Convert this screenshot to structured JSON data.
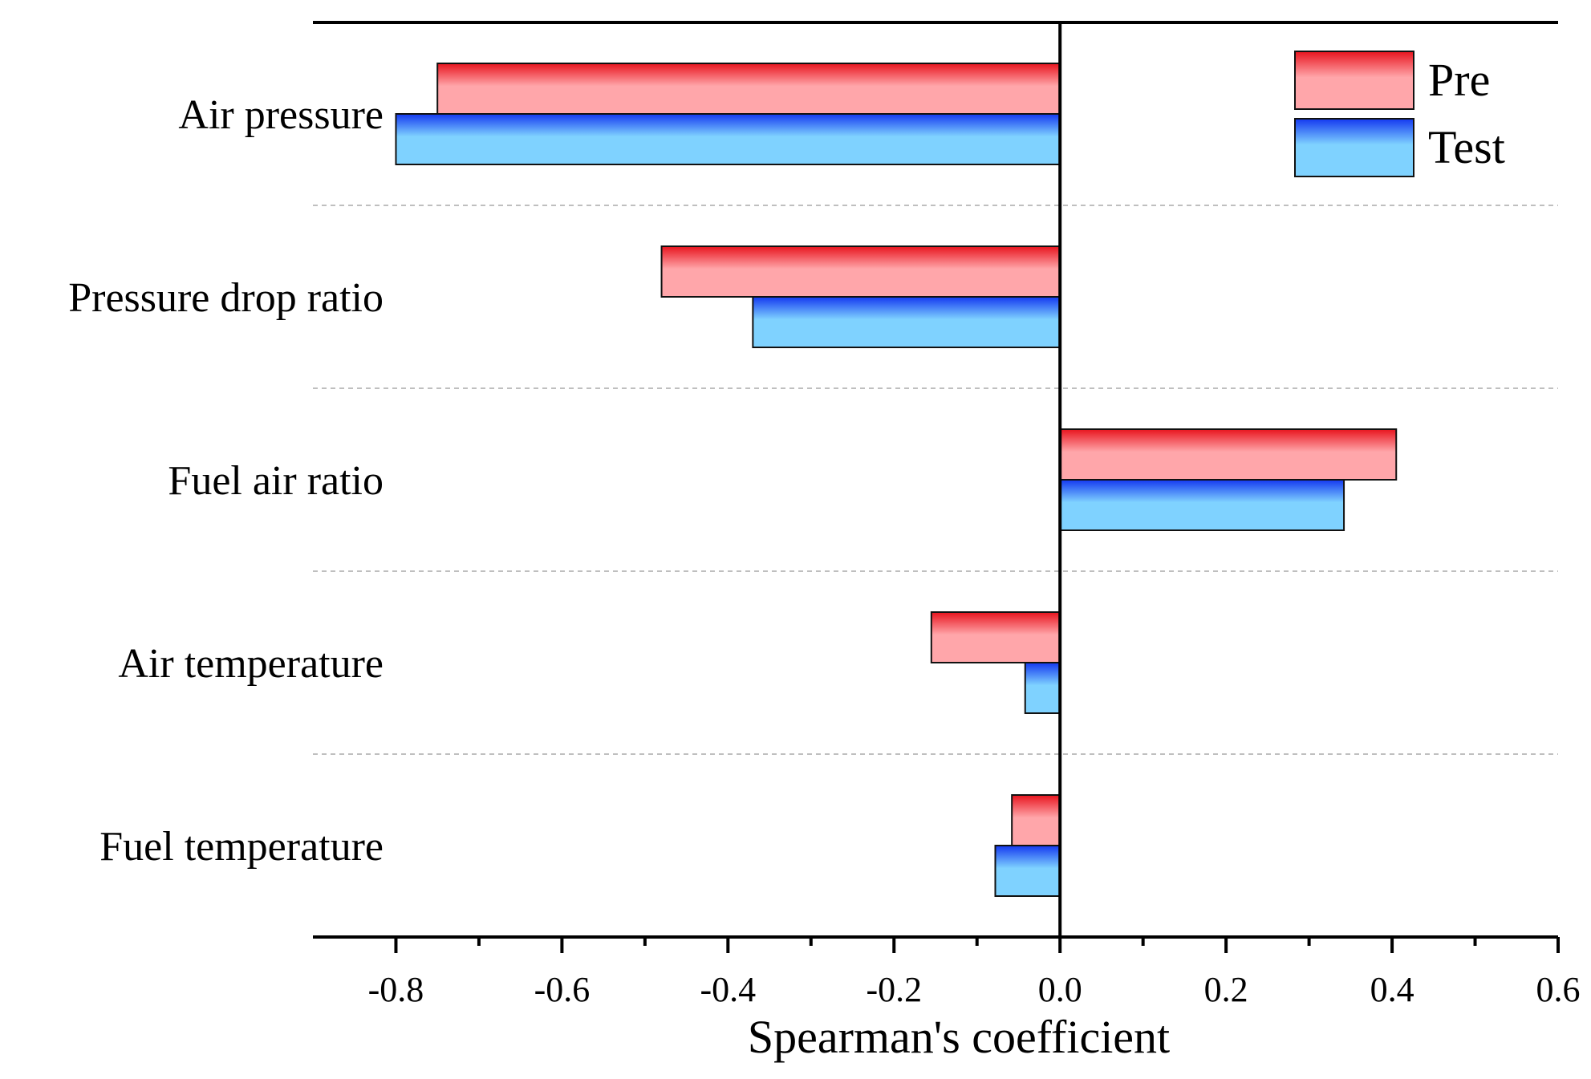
{
  "chart_data": {
    "type": "bar",
    "orientation": "horizontal",
    "categories": [
      "Air pressure",
      "Pressure drop ratio",
      "Fuel air ratio",
      "Air temperature",
      "Fuel temperature"
    ],
    "series": [
      {
        "name": "Pre",
        "values": [
          -0.75,
          -0.48,
          0.405,
          -0.155,
          -0.058
        ]
      },
      {
        "name": "Test",
        "values": [
          -0.8,
          -0.37,
          0.342,
          -0.042,
          -0.078
        ]
      }
    ],
    "xlabel": "Spearman's coefficient",
    "ylabel": "",
    "xlim": [
      -0.9,
      0.6
    ],
    "xticks": [
      -0.8,
      -0.6,
      -0.4,
      -0.2,
      0.0,
      0.2,
      0.4,
      0.6
    ],
    "xtick_labels": [
      "-0.8",
      "-0.6",
      "-0.4",
      "-0.2",
      "0.0",
      "0.2",
      "0.4",
      "0.6"
    ],
    "grid": "dashed separators between categories",
    "legend": {
      "position": "top-right",
      "entries": [
        "Pre",
        "Test"
      ]
    },
    "colors": {
      "pre_dark": "#e8141e",
      "pre_light": "#ffa6aa",
      "test_dark": "#1438f0",
      "test_light": "#7fd2ff",
      "bar_edge": "#111111",
      "grid": "#bfbfbf",
      "axis": "#000000"
    }
  }
}
